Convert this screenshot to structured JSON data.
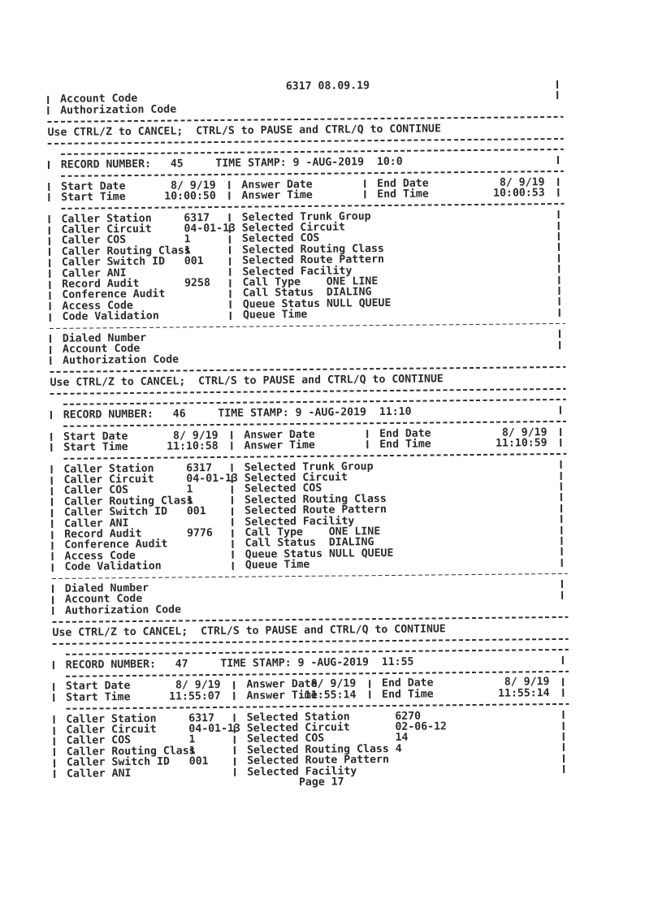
{
  "page": {
    "title": "6317 08.09.19",
    "prompt": "Use CTRL/Z to CANCEL;  CTRL/S to PAUSE and CTRL/Q to CONTINUE",
    "footer": "Page 17"
  },
  "top_fragment": {
    "row1": "Account Code",
    "row2": "Authorization Code"
  },
  "labels": {
    "record_number": "RECORD NUMBER:",
    "time_stamp": "TIME STAMP:",
    "start_date": "Start Date",
    "start_time": "Start Time",
    "answer_date": "Answer Date",
    "answer_time": "Answer Time",
    "end_date": "End Date",
    "end_time": "End Time",
    "caller": [
      "Caller Station",
      "Caller Circuit",
      "Caller COS",
      "Caller Routing Class",
      "Caller Switch ID",
      "Caller ANI",
      "Record Audit",
      "Conference Audit",
      "Access Code",
      "Code Validation"
    ],
    "selected": [
      "Selected Trunk Group",
      "Selected Circuit",
      "Selected COS",
      "Selected Routing Class",
      "Selected Route Pattern",
      "Selected Facility",
      "Call Type",
      "Call Status",
      "Queue Status",
      "Queue Time"
    ],
    "tail": [
      "Dialed Number",
      "Account Code",
      "Authorization Code"
    ]
  },
  "records": [
    {
      "number": "45",
      "timestamp": "9 -AUG-2019  10:0",
      "start_date": "8/ 9/19",
      "start_time": "10:00:50",
      "answer_date": "",
      "answer_time": "",
      "end_date": "8/ 9/19",
      "end_time": "10:00:53",
      "caller_values": [
        "6317",
        "04-01-13",
        "1",
        "1",
        "001",
        "",
        "9258",
        "",
        "",
        ""
      ],
      "selected_values": [
        "",
        "",
        "",
        "",
        "",
        "",
        "ONE LINE",
        "DIALING",
        "NULL QUEUE",
        ""
      ]
    },
    {
      "number": "46",
      "timestamp": "9 -AUG-2019  11:10",
      "start_date": "8/ 9/19",
      "start_time": "11:10:58",
      "answer_date": "",
      "answer_time": "",
      "end_date": "8/ 9/19",
      "end_time": "11:10:59",
      "caller_values": [
        "6317",
        "04-01-13",
        "1",
        "1",
        "001",
        "",
        "9776",
        "",
        "",
        ""
      ],
      "selected_values": [
        "",
        "",
        "",
        "",
        "",
        "",
        "ONE LINE",
        "DIALING",
        "NULL QUEUE",
        ""
      ]
    },
    {
      "number": "47",
      "timestamp": "9 -AUG-2019  11:55",
      "start_date": "8/ 9/19",
      "start_time": "11:55:07",
      "answer_date": "8/ 9/19",
      "answer_time": "11:55:14",
      "end_date": "8/ 9/19",
      "end_time": "11:55:14",
      "caller_values": [
        "6317",
        "04-01-13",
        "1",
        "1",
        "001",
        ""
      ],
      "selected_labels": [
        "Selected Station",
        "Selected Circuit",
        "Selected COS",
        "Selected Routing Class",
        "Selected Route Pattern",
        "Selected Facility"
      ],
      "selected_values": [
        "6270",
        "02-06-12",
        "14",
        "4",
        "",
        ""
      ]
    }
  ]
}
